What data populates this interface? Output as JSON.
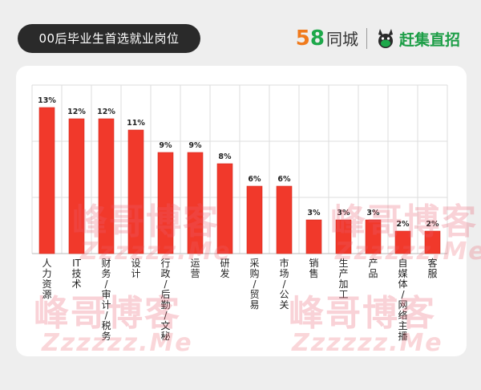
{
  "header": {
    "title": "00后毕业生首选就业岗位",
    "logo_58_a": "5",
    "logo_58_b": "8",
    "logo_58_text": "同城",
    "logo_gj_text": "赶集直招"
  },
  "watermarks": {
    "text": "峰哥博客",
    "url": "Zzzzzz.Me"
  },
  "colors": {
    "bar": "#f1392b",
    "bar_edge": "#d42a1e",
    "grid": "#dddddd",
    "brand_orange": "#f07a1c",
    "brand_green": "#1da84a"
  },
  "chart_data": {
    "type": "bar",
    "title": "00后毕业生首选就业岗位",
    "xlabel": "",
    "ylabel": "",
    "ylim": [
      0,
      15
    ],
    "grid": true,
    "categories": [
      "人力资源",
      "IT技术",
      "财务/审计/税务",
      "设计",
      "行政/后勤/文秘",
      "运营",
      "研发",
      "采购/贸易",
      "市场/公关",
      "销售",
      "生产加工",
      "产品",
      "自媒体/网络主播",
      "客服"
    ],
    "values": [
      13,
      12,
      12,
      11,
      9,
      9,
      8,
      6,
      6,
      3,
      3,
      3,
      2,
      2
    ],
    "value_labels": [
      "13%",
      "12%",
      "12%",
      "11%",
      "9%",
      "9%",
      "8%",
      "6%",
      "6%",
      "3%",
      "3%",
      "3%",
      "2%",
      "2%"
    ]
  }
}
